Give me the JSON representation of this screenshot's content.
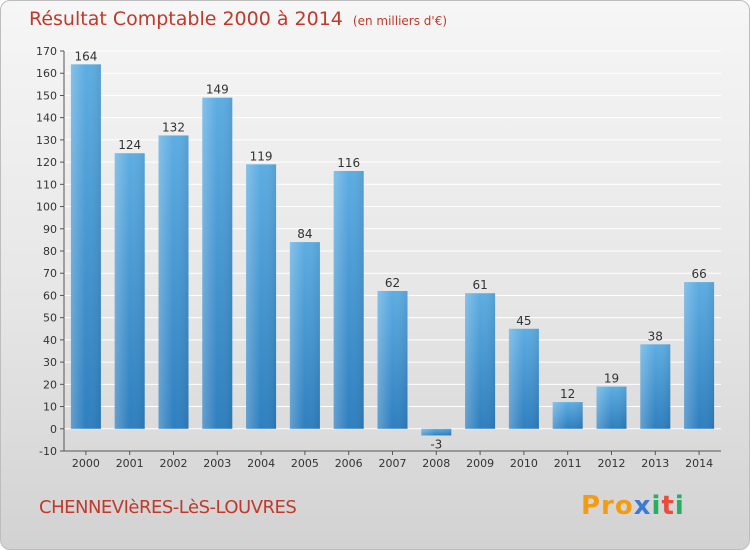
{
  "header": {
    "title": "Résultat Comptable 2000 à 2014",
    "subtitle": "(en milliers d'€)"
  },
  "footer": {
    "commune": "CHENNEVIèRES-LèS-LOUVRES",
    "logo": "Proxiti"
  },
  "colors": {
    "bar_top": "#5dade2",
    "bar_bottom": "#2e86c1",
    "grid": "#ffffff",
    "title": "#c0392b"
  },
  "chart_data": {
    "type": "bar",
    "categories": [
      "2000",
      "2001",
      "2002",
      "2003",
      "2004",
      "2005",
      "2006",
      "2007",
      "2008",
      "2009",
      "2010",
      "2011",
      "2012",
      "2013",
      "2014"
    ],
    "values": [
      164,
      124,
      132,
      149,
      119,
      84,
      116,
      62,
      -3,
      61,
      45,
      12,
      19,
      38,
      66
    ],
    "title": "Résultat Comptable 2000 à 2014",
    "xlabel": "",
    "ylabel": "",
    "ylim": [
      -10,
      170
    ],
    "yticks": [
      -10,
      0,
      10,
      20,
      30,
      40,
      50,
      60,
      70,
      80,
      90,
      100,
      110,
      120,
      130,
      140,
      150,
      160,
      170
    ],
    "grid": true,
    "legend": "none"
  }
}
